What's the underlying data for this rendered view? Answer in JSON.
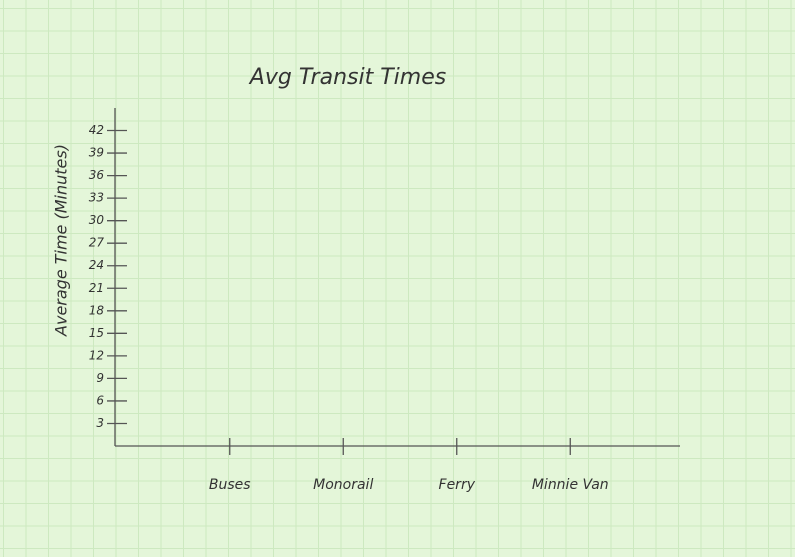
{
  "chart_data": {
    "type": "bar",
    "title": "Avg Transit Times",
    "y_label": "Average Time (Minutes)",
    "categories": [
      "Buses",
      "Monorail",
      "Ferry",
      "Minnie Van"
    ],
    "ylim": [
      0,
      45
    ],
    "yticks": [
      3,
      6,
      9,
      12,
      15,
      18,
      21,
      24,
      27,
      30,
      33,
      36,
      39,
      42
    ]
  }
}
